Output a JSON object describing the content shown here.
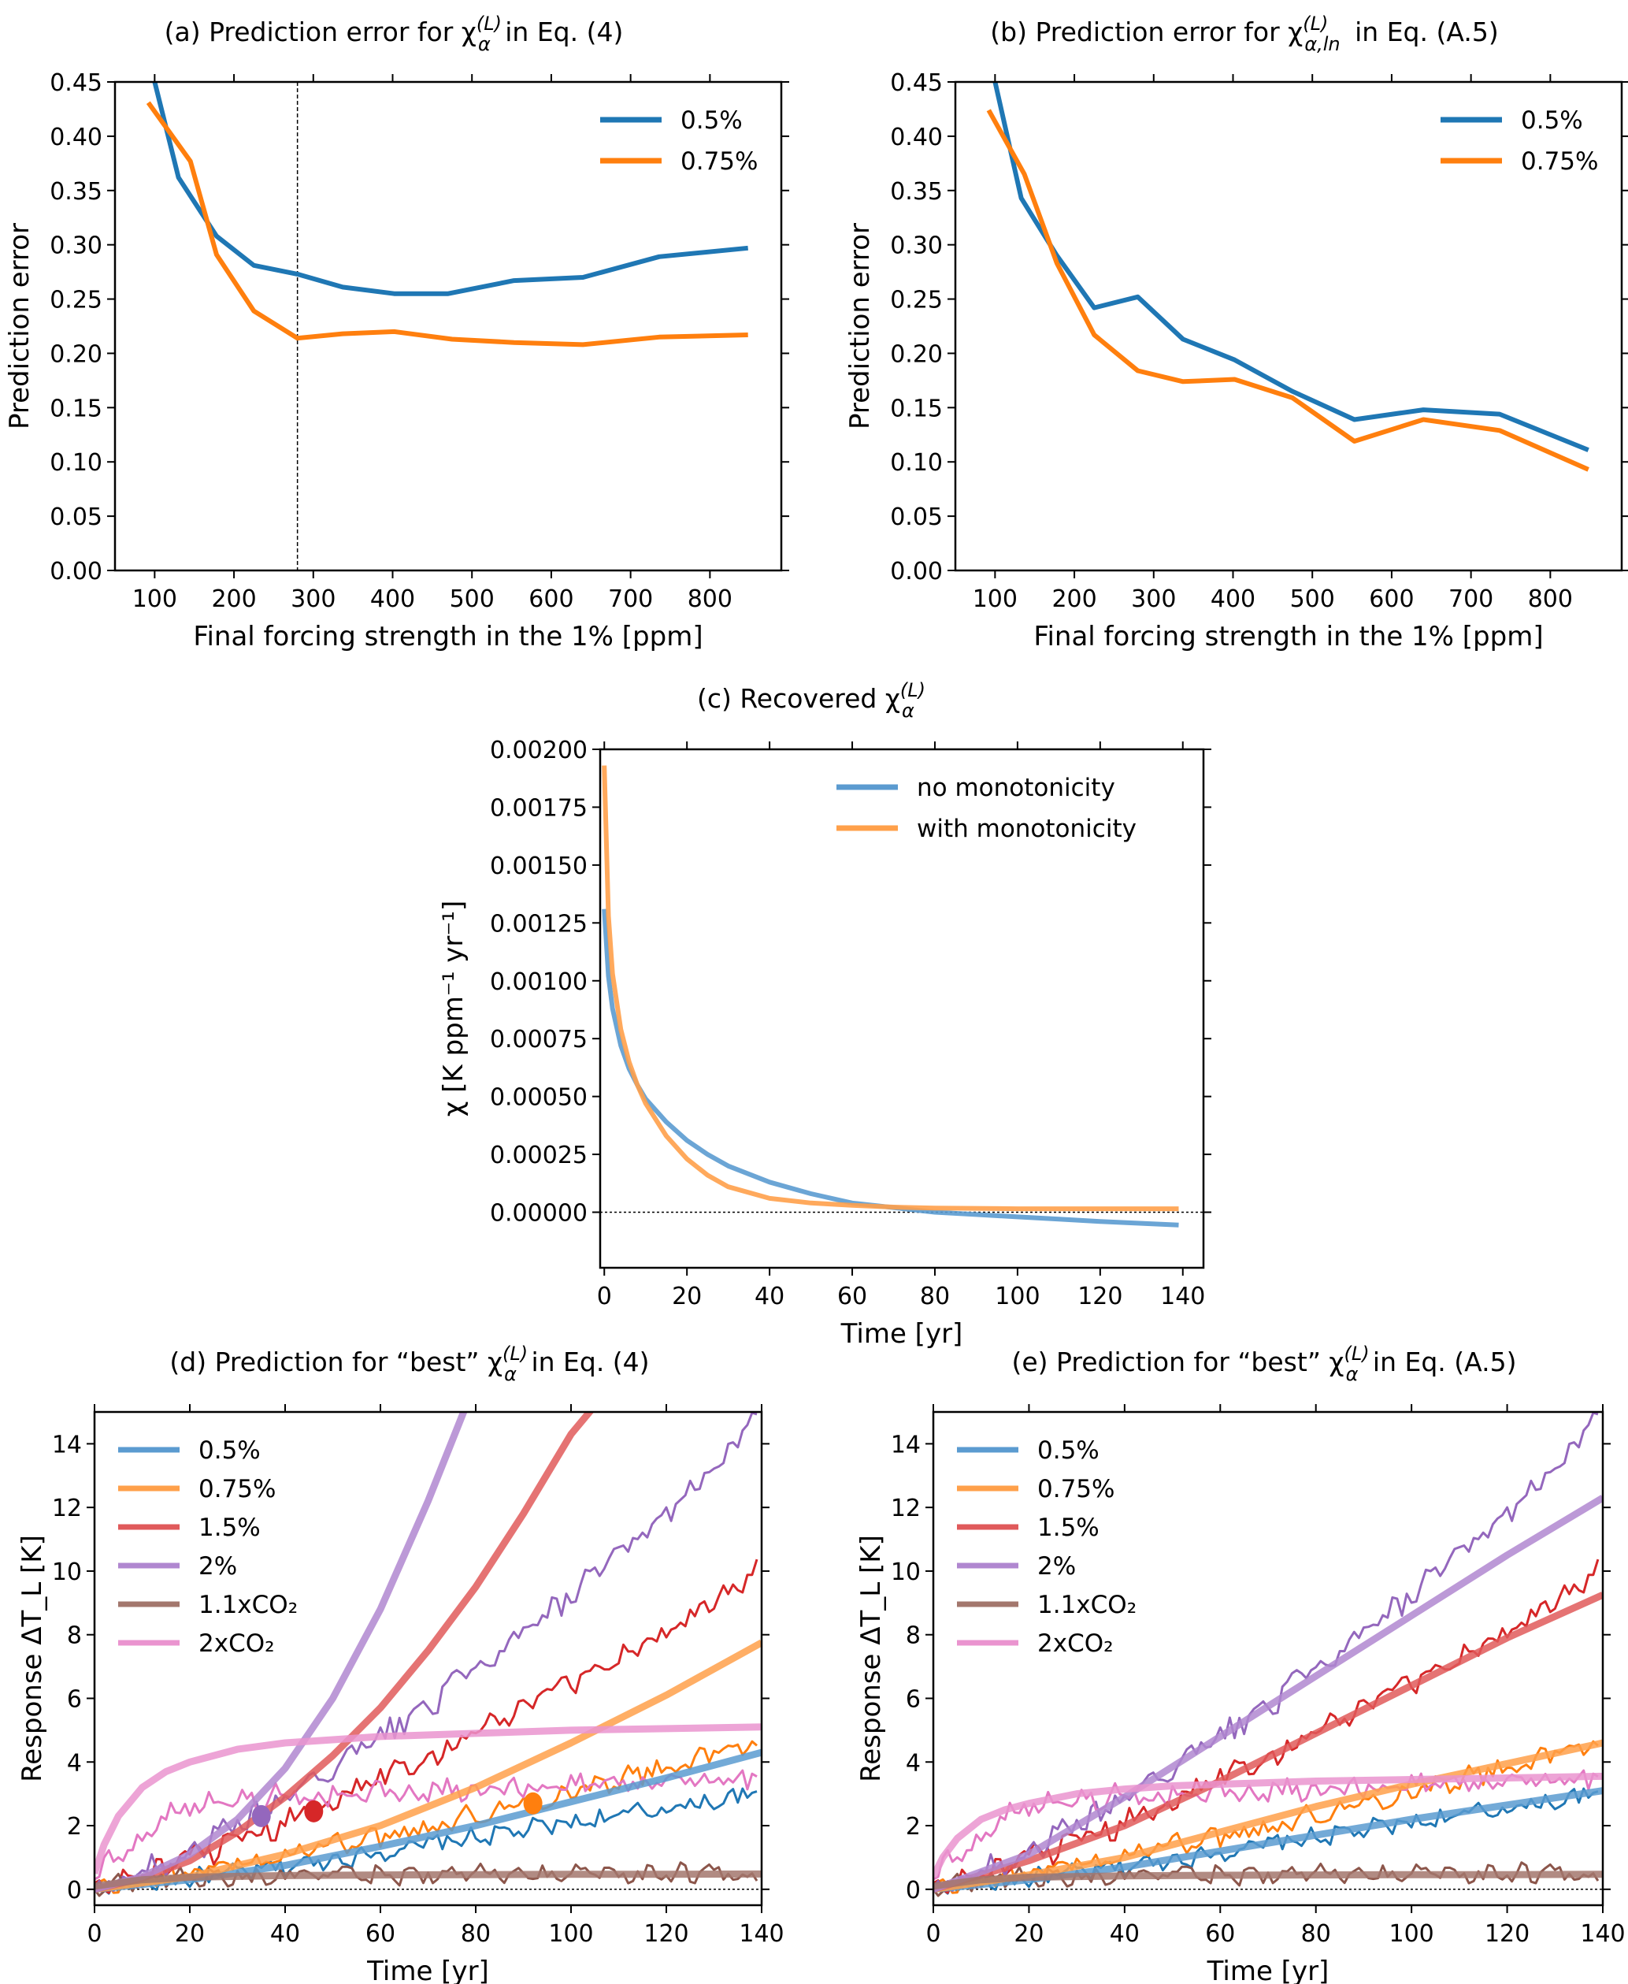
{
  "chart_data": [
    {
      "id": "a",
      "type": "line",
      "title_prefix": "(a)",
      "title_main": "Prediction error for χ",
      "title_sup": "(L)",
      "title_sub": "α",
      "title_suffix": " in Eq. (4)",
      "xlabel": "Final forcing strength in the 1% [ppm]",
      "ylabel": "Prediction error",
      "xlim": [
        50,
        890
      ],
      "ylim": [
        0.0,
        0.45
      ],
      "xticks": [
        100,
        200,
        300,
        400,
        500,
        600,
        700,
        800
      ],
      "yticks": [
        0.0,
        0.05,
        0.1,
        0.15,
        0.2,
        0.25,
        0.3,
        0.35,
        0.4,
        0.45
      ],
      "ytick_format": 2,
      "vline": 280,
      "legend": "top-right",
      "series": [
        {
          "name": "0.5%",
          "color": "#1f77b4",
          "x": [
            95,
            100,
            130,
            178,
            225,
            280,
            337,
            402,
            470,
            553,
            640,
            736,
            848
          ],
          "y": [
            0.47,
            0.45,
            0.362,
            0.308,
            0.281,
            0.273,
            0.261,
            0.255,
            0.255,
            0.267,
            0.27,
            0.289,
            0.297
          ]
        },
        {
          "name": "0.75%",
          "color": "#ff7f0e",
          "x": [
            92,
            145,
            178,
            225,
            280,
            337,
            402,
            475,
            553,
            640,
            736,
            848
          ],
          "y": [
            0.431,
            0.377,
            0.291,
            0.239,
            0.214,
            0.218,
            0.22,
            0.213,
            0.21,
            0.208,
            0.215,
            0.217
          ]
        }
      ]
    },
    {
      "id": "b",
      "type": "line",
      "title_prefix": "(b)",
      "title_main": "Prediction error for χ",
      "title_sup": "(L)",
      "title_sub": "α,ln",
      "title_suffix": " in Eq. (A.5)",
      "xlabel": "Final forcing strength in the 1% [ppm]",
      "ylabel": "Prediction error",
      "xlim": [
        50,
        890
      ],
      "ylim": [
        0.0,
        0.45
      ],
      "xticks": [
        100,
        200,
        300,
        400,
        500,
        600,
        700,
        800
      ],
      "yticks": [
        0.0,
        0.05,
        0.1,
        0.15,
        0.2,
        0.25,
        0.3,
        0.35,
        0.4,
        0.45
      ],
      "ytick_format": 2,
      "legend": "top-right",
      "series": [
        {
          "name": "0.5%",
          "color": "#1f77b4",
          "x": [
            100,
            133,
            178,
            225,
            280,
            337,
            402,
            475,
            553,
            640,
            736,
            848
          ],
          "y": [
            0.45,
            0.343,
            0.29,
            0.242,
            0.252,
            0.213,
            0.194,
            0.165,
            0.139,
            0.148,
            0.144,
            0.111
          ]
        },
        {
          "name": "0.75%",
          "color": "#ff7f0e",
          "x": [
            92,
            137,
            178,
            225,
            280,
            337,
            402,
            475,
            553,
            640,
            736,
            848
          ],
          "y": [
            0.424,
            0.365,
            0.283,
            0.217,
            0.184,
            0.174,
            0.176,
            0.159,
            0.119,
            0.139,
            0.129,
            0.093
          ]
        }
      ]
    },
    {
      "id": "c",
      "type": "line",
      "title_prefix": "(c)",
      "title_main": "Recovered χ",
      "title_sup": "(L)",
      "title_sub": "α",
      "title_suffix": "",
      "xlabel": "Time [yr]",
      "ylabel": "χ [K ppm⁻¹ yr⁻¹]",
      "xlim": [
        -1,
        145
      ],
      "ylim": [
        -0.00024,
        0.002
      ],
      "xticks": [
        0,
        20,
        40,
        60,
        80,
        100,
        120,
        140
      ],
      "yticks": [
        0.0,
        0.00025,
        0.0005,
        0.00075,
        0.001,
        0.00125,
        0.0015,
        0.00175,
        0.002
      ],
      "ytick_format": 5,
      "hline": 0,
      "legend": "top-right",
      "series": [
        {
          "name": "no monotonicity",
          "color": "#5b9bd0",
          "x": [
            0,
            1,
            2,
            4,
            6,
            8,
            10,
            15,
            20,
            25,
            30,
            40,
            50,
            60,
            70,
            80,
            90,
            100,
            110,
            120,
            130,
            139
          ],
          "y": [
            0.00131,
            0.00102,
            0.00088,
            0.00072,
            0.00062,
            0.00055,
            0.00049,
            0.00039,
            0.00031,
            0.00025,
            0.0002,
            0.00013,
            8e-05,
            4e-05,
            2e-05,
            0.0,
            -1e-05,
            -2e-05,
            -3e-05,
            -4e-05,
            -4.8e-05,
            -5.5e-05
          ]
        },
        {
          "name": "with monotonicity",
          "color": "#ffa04a",
          "x": [
            0,
            1,
            2,
            4,
            6,
            8,
            10,
            15,
            20,
            25,
            30,
            40,
            50,
            60,
            70,
            80,
            100,
            120,
            139
          ],
          "y": [
            0.00193,
            0.00128,
            0.00103,
            0.00079,
            0.00065,
            0.00055,
            0.00047,
            0.00033,
            0.00023,
            0.00016,
            0.00011,
            6e-05,
            4e-05,
            3e-05,
            2.2e-05,
            1.8e-05,
            1.5e-05,
            1.5e-05,
            1.5e-05
          ]
        }
      ]
    },
    {
      "id": "d",
      "type": "line",
      "title_prefix": "(d)",
      "title_main": "Prediction for “best” χ",
      "title_sup": "(L)",
      "title_sub": "α",
      "title_suffix": " in Eq. (4)",
      "xlabel": "Time [yr]",
      "ylabel": "Response ΔT_L [K]",
      "xlim": [
        0,
        140
      ],
      "ylim": [
        -0.5,
        15
      ],
      "xticks": [
        0,
        20,
        40,
        60,
        80,
        100,
        120,
        140
      ],
      "yticks": [
        0,
        2,
        4,
        6,
        8,
        10,
        12,
        14
      ],
      "ytick_format": 0,
      "hline": 0,
      "legend": "upper-left",
      "markers": [
        {
          "series": "2%",
          "x": 35,
          "y": 2.3,
          "color": "#9467bd"
        },
        {
          "series": "1.5%",
          "x": 46,
          "y": 2.45,
          "color": "#d62728"
        },
        {
          "series": "0.75%",
          "x": 92,
          "y": 2.7,
          "color": "#ff7f0e"
        }
      ],
      "predictions": [
        {
          "name": "0.5%",
          "color": "#5b9bd0",
          "x": [
            0,
            20,
            40,
            60,
            80,
            100,
            120,
            140
          ],
          "y": [
            0.0,
            0.3,
            0.75,
            1.35,
            2.0,
            2.75,
            3.5,
            4.3
          ]
        },
        {
          "name": "0.75%",
          "color": "#ffa04a",
          "x": [
            0,
            20,
            40,
            60,
            80,
            100,
            120,
            140
          ],
          "y": [
            0.0,
            0.4,
            1.1,
            2.0,
            3.2,
            4.6,
            6.1,
            7.75
          ]
        },
        {
          "name": "1.5%",
          "color": "#e05a5b",
          "x": [
            0,
            10,
            20,
            30,
            40,
            50,
            60,
            70,
            80,
            90,
            100,
            105
          ],
          "y": [
            0.0,
            0.35,
            0.9,
            1.8,
            2.9,
            4.2,
            5.7,
            7.5,
            9.5,
            11.8,
            14.3,
            15.2
          ]
        },
        {
          "name": "2%",
          "color": "#b087d0",
          "x": [
            0,
            10,
            20,
            30,
            40,
            50,
            60,
            70,
            78
          ],
          "y": [
            0.0,
            0.4,
            1.1,
            2.2,
            3.8,
            6.0,
            8.8,
            12.2,
            15.2
          ]
        },
        {
          "name": "1.1xCO2",
          "color": "#a3776d",
          "x": [
            0,
            10,
            20,
            40,
            60,
            80,
            100,
            120,
            140
          ],
          "y": [
            0.1,
            0.3,
            0.38,
            0.43,
            0.45,
            0.46,
            0.47,
            0.47,
            0.48
          ]
        },
        {
          "name": "2xCO2",
          "color": "#ea94cf",
          "x": [
            0,
            2,
            5,
            10,
            15,
            20,
            30,
            40,
            50,
            60,
            80,
            100,
            120,
            140
          ],
          "y": [
            0.5,
            1.4,
            2.3,
            3.2,
            3.7,
            4.0,
            4.4,
            4.6,
            4.7,
            4.8,
            4.9,
            5.0,
            5.05,
            5.1
          ]
        }
      ],
      "observations": [
        {
          "name": "0.5%",
          "color": "#1f77b4",
          "trend": [
            0.0,
            0.3,
            0.6,
            1.0,
            1.4,
            1.8,
            2.2,
            2.6,
            3.0
          ],
          "noise": 0.25
        },
        {
          "name": "0.75%",
          "color": "#ff7f0e",
          "trend": [
            0.0,
            0.5,
            0.9,
            1.5,
            2.0,
            2.6,
            3.3,
            3.9,
            4.7
          ],
          "noise": 0.3
        },
        {
          "name": "1.5%",
          "color": "#d62728",
          "trend": [
            0.0,
            0.8,
            1.7,
            3.0,
            4.2,
            5.5,
            6.9,
            8.3,
            10.2
          ],
          "noise": 0.35
        },
        {
          "name": "2%",
          "color": "#9467bd",
          "trend": [
            0.0,
            1.0,
            2.4,
            4.0,
            5.8,
            7.7,
            9.8,
            12.2,
            14.8
          ],
          "noise": 0.35
        },
        {
          "name": "1.1xCO2",
          "color": "#8c564b",
          "trend": [
            0.1,
            0.4,
            0.4,
            0.45,
            0.45,
            0.45,
            0.5,
            0.5,
            0.5
          ],
          "noise": 0.25
        },
        {
          "name": "2xCO2",
          "color": "#e377c2",
          "trend": [
            0.5,
            2.6,
            2.9,
            3.0,
            3.1,
            3.2,
            3.3,
            3.3,
            3.4
          ],
          "noise": 0.3
        }
      ]
    },
    {
      "id": "e",
      "type": "line",
      "title_prefix": "(e)",
      "title_main": "Prediction for “best” χ",
      "title_sup": "(L)",
      "title_sub": "α",
      "title_suffix": " in Eq. (A.5)",
      "xlabel": "Time [yr]",
      "ylabel": "Response ΔT_L [K]",
      "xlim": [
        0,
        140
      ],
      "ylim": [
        -0.5,
        15
      ],
      "xticks": [
        0,
        20,
        40,
        60,
        80,
        100,
        120,
        140
      ],
      "yticks": [
        0,
        2,
        4,
        6,
        8,
        10,
        12,
        14
      ],
      "ytick_format": 0,
      "hline": 0,
      "legend": "upper-left",
      "predictions": [
        {
          "name": "0.5%",
          "color": "#5b9bd0",
          "x": [
            0,
            20,
            40,
            60,
            80,
            100,
            120,
            140
          ],
          "y": [
            0.0,
            0.3,
            0.7,
            1.2,
            1.7,
            2.2,
            2.65,
            3.1
          ]
        },
        {
          "name": "0.75%",
          "color": "#ffa04a",
          "x": [
            0,
            20,
            40,
            60,
            80,
            100,
            120,
            140
          ],
          "y": [
            0.0,
            0.45,
            1.0,
            1.8,
            2.6,
            3.3,
            3.95,
            4.6
          ]
        },
        {
          "name": "1.5%",
          "color": "#e05a5b",
          "x": [
            0,
            20,
            40,
            60,
            80,
            100,
            120,
            140
          ],
          "y": [
            0.0,
            0.9,
            2.0,
            3.4,
            4.9,
            6.4,
            7.9,
            9.25
          ]
        },
        {
          "name": "2%",
          "color": "#b087d0",
          "x": [
            0,
            20,
            40,
            60,
            80,
            100,
            120,
            140
          ],
          "y": [
            0.0,
            1.1,
            2.9,
            4.8,
            6.7,
            8.6,
            10.5,
            12.3
          ]
        },
        {
          "name": "1.1xCO2",
          "color": "#a3776d",
          "x": [
            0,
            10,
            20,
            40,
            60,
            80,
            100,
            120,
            140
          ],
          "y": [
            0.1,
            0.3,
            0.38,
            0.42,
            0.44,
            0.45,
            0.46,
            0.46,
            0.47
          ]
        },
        {
          "name": "2xCO2",
          "color": "#ea94cf",
          "x": [
            0,
            2,
            5,
            10,
            15,
            20,
            30,
            40,
            50,
            60,
            80,
            100,
            120,
            140
          ],
          "y": [
            0.4,
            1.0,
            1.6,
            2.2,
            2.5,
            2.7,
            3.0,
            3.15,
            3.25,
            3.3,
            3.4,
            3.45,
            3.5,
            3.55
          ]
        }
      ],
      "observations": [
        {
          "name": "0.5%",
          "color": "#1f77b4",
          "trend": [
            0.0,
            0.3,
            0.6,
            1.0,
            1.4,
            1.8,
            2.2,
            2.6,
            3.0
          ],
          "noise": 0.25
        },
        {
          "name": "0.75%",
          "color": "#ff7f0e",
          "trend": [
            0.0,
            0.5,
            0.9,
            1.5,
            2.0,
            2.6,
            3.3,
            3.9,
            4.7
          ],
          "noise": 0.3
        },
        {
          "name": "1.5%",
          "color": "#d62728",
          "trend": [
            0.0,
            0.8,
            1.7,
            3.0,
            4.2,
            5.5,
            6.9,
            8.3,
            10.2
          ],
          "noise": 0.35
        },
        {
          "name": "2%",
          "color": "#9467bd",
          "trend": [
            0.0,
            1.0,
            2.4,
            4.0,
            5.8,
            7.7,
            9.8,
            12.2,
            14.8
          ],
          "noise": 0.35
        },
        {
          "name": "1.1xCO2",
          "color": "#8c564b",
          "trend": [
            0.1,
            0.4,
            0.4,
            0.45,
            0.45,
            0.45,
            0.5,
            0.5,
            0.5
          ],
          "noise": 0.25
        },
        {
          "name": "2xCO2",
          "color": "#e377c2",
          "trend": [
            0.5,
            2.6,
            2.9,
            3.0,
            3.1,
            3.2,
            3.3,
            3.3,
            3.4
          ],
          "noise": 0.3
        }
      ]
    }
  ],
  "legend_d_e": [
    {
      "label": "0.5%",
      "color": "#5b9bd0"
    },
    {
      "label": "0.75%",
      "color": "#ffa04a"
    },
    {
      "label": "1.5%",
      "color": "#e05a5b"
    },
    {
      "label": "2%",
      "color": "#b087d0"
    },
    {
      "label": "1.1xCO₂",
      "color": "#a3776d"
    },
    {
      "label": "2xCO₂",
      "color": "#ea94cf"
    }
  ]
}
